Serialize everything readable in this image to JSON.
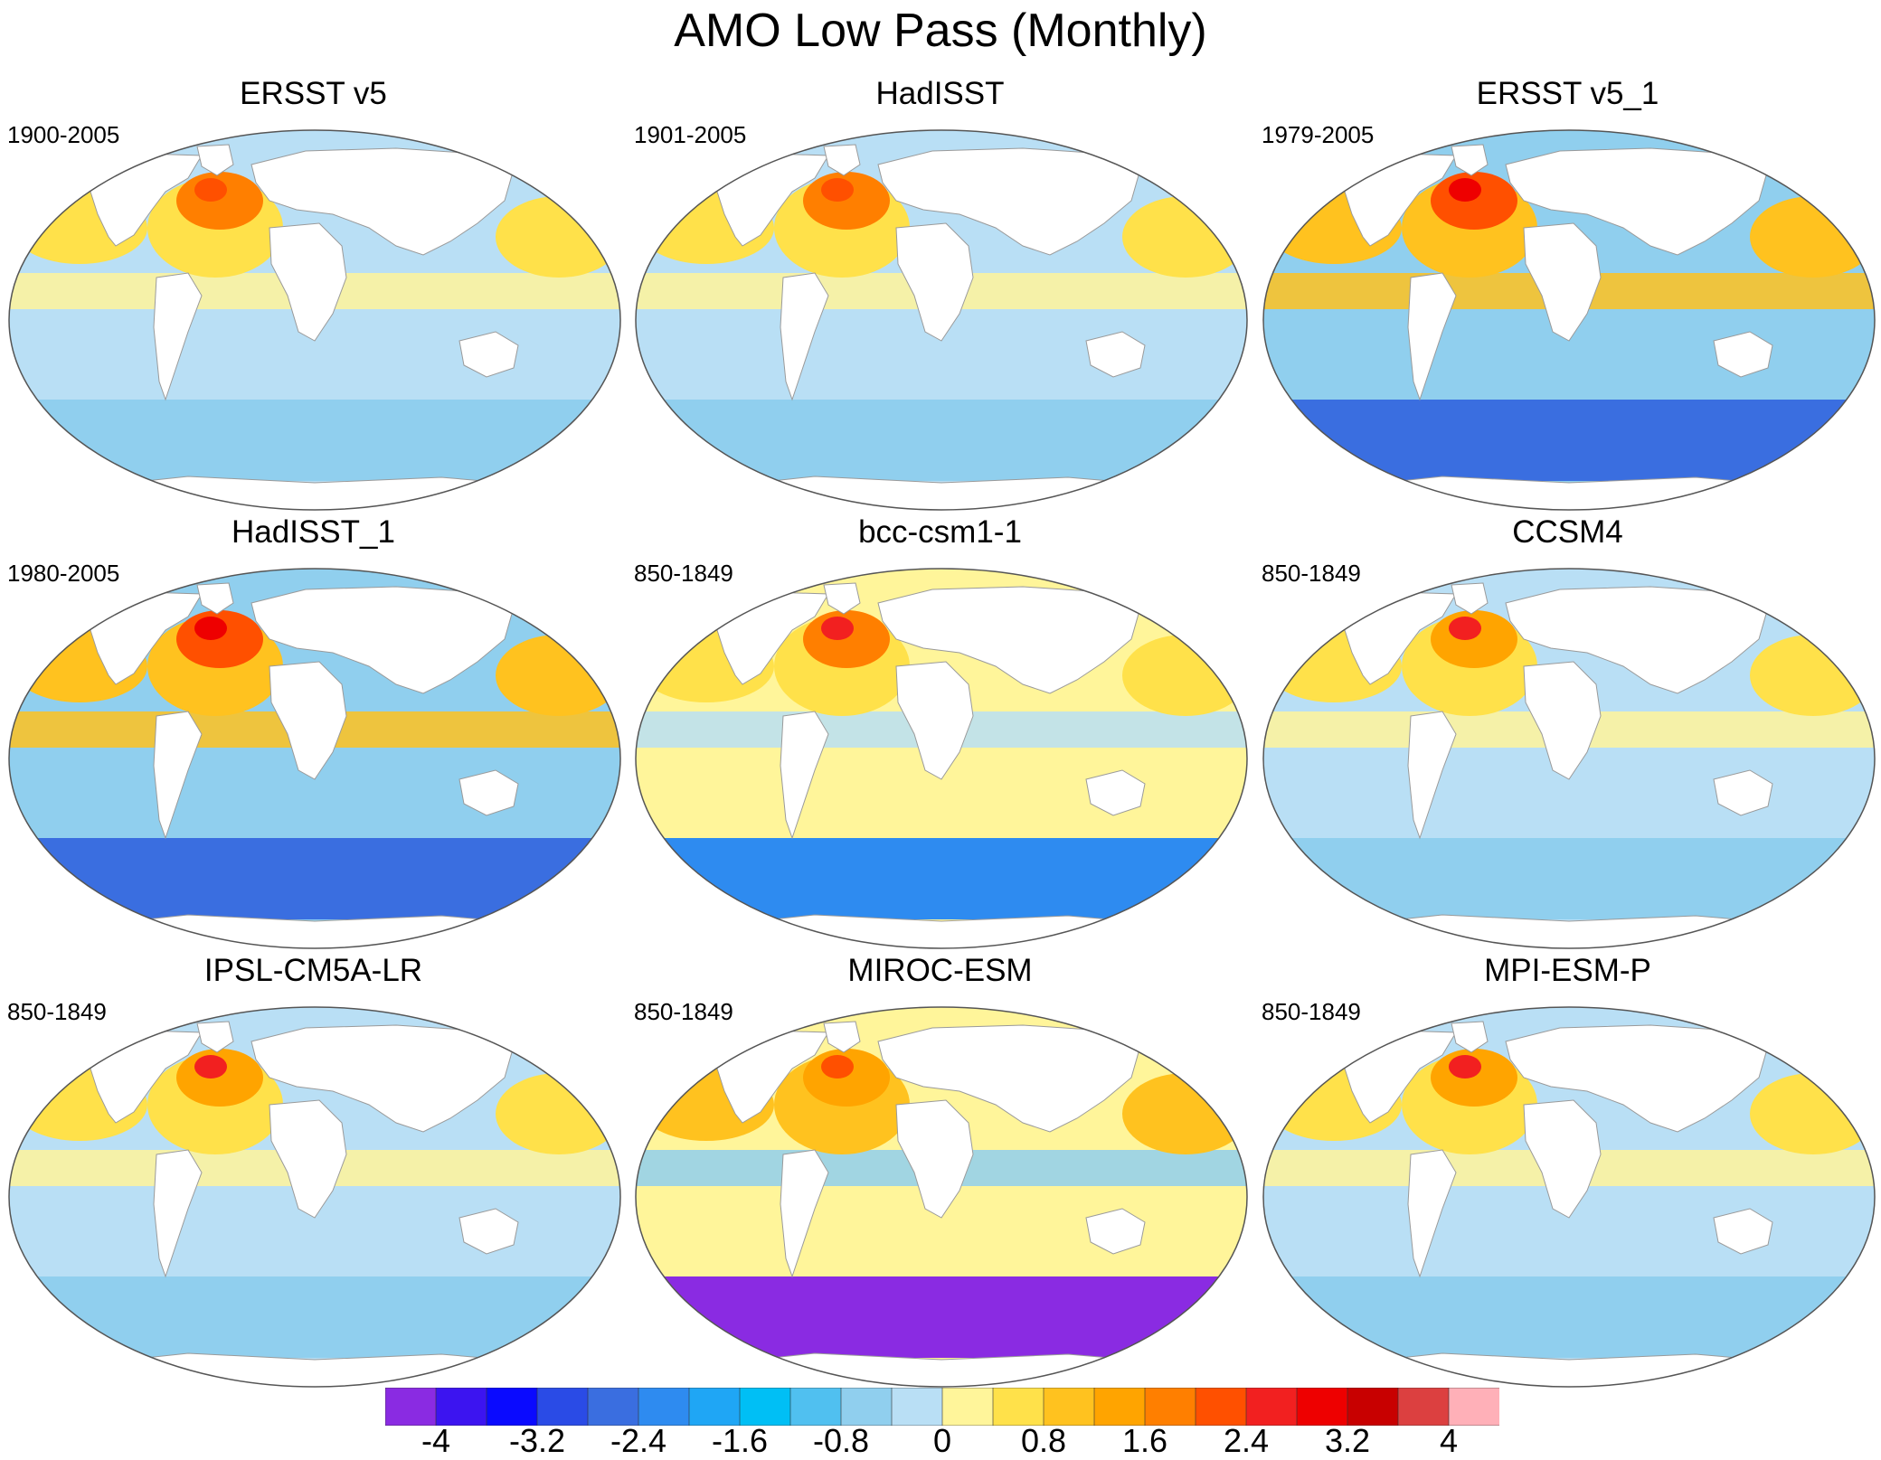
{
  "title": "AMO Low Pass (Monthly)",
  "panels": [
    {
      "name": "ERSST v5",
      "period": "1900-2005",
      "palette": "obs"
    },
    {
      "name": "HadISST",
      "period": "1901-2005",
      "palette": "obs"
    },
    {
      "name": "ERSST v5_1",
      "period": "1979-2005",
      "palette": "strong"
    },
    {
      "name": "HadISST_1",
      "period": "1980-2005",
      "palette": "strong"
    },
    {
      "name": "bcc-csm1-1",
      "period": "850-1849",
      "palette": "model_south"
    },
    {
      "name": "CCSM4",
      "period": "850-1849",
      "palette": "model"
    },
    {
      "name": "IPSL-CM5A-LR",
      "period": "850-1849",
      "palette": "model"
    },
    {
      "name": "MIROC-ESM",
      "period": "850-1849",
      "palette": "model_deep"
    },
    {
      "name": "MPI-ESM-P",
      "period": "850-1849",
      "palette": "model"
    }
  ],
  "colorbar": {
    "colors": [
      "#8a2be2",
      "#3c14f0",
      "#0a0aff",
      "#2a4be6",
      "#3a6ee0",
      "#2e8bf0",
      "#1fa6f5",
      "#00bff5",
      "#50c0f0",
      "#90cfee",
      "#b9dff5",
      "#fff59a",
      "#ffe14a",
      "#ffc21f",
      "#ffa400",
      "#ff7f00",
      "#ff5000",
      "#f22020",
      "#ee0000",
      "#c80000",
      "#dc4040",
      "#ffb0b8"
    ],
    "tick_labels": [
      "-4",
      "-3.2",
      "-2.4",
      "-1.6",
      "-0.8",
      "0",
      "0.8",
      "1.6",
      "2.4",
      "3.2",
      "4"
    ]
  }
}
